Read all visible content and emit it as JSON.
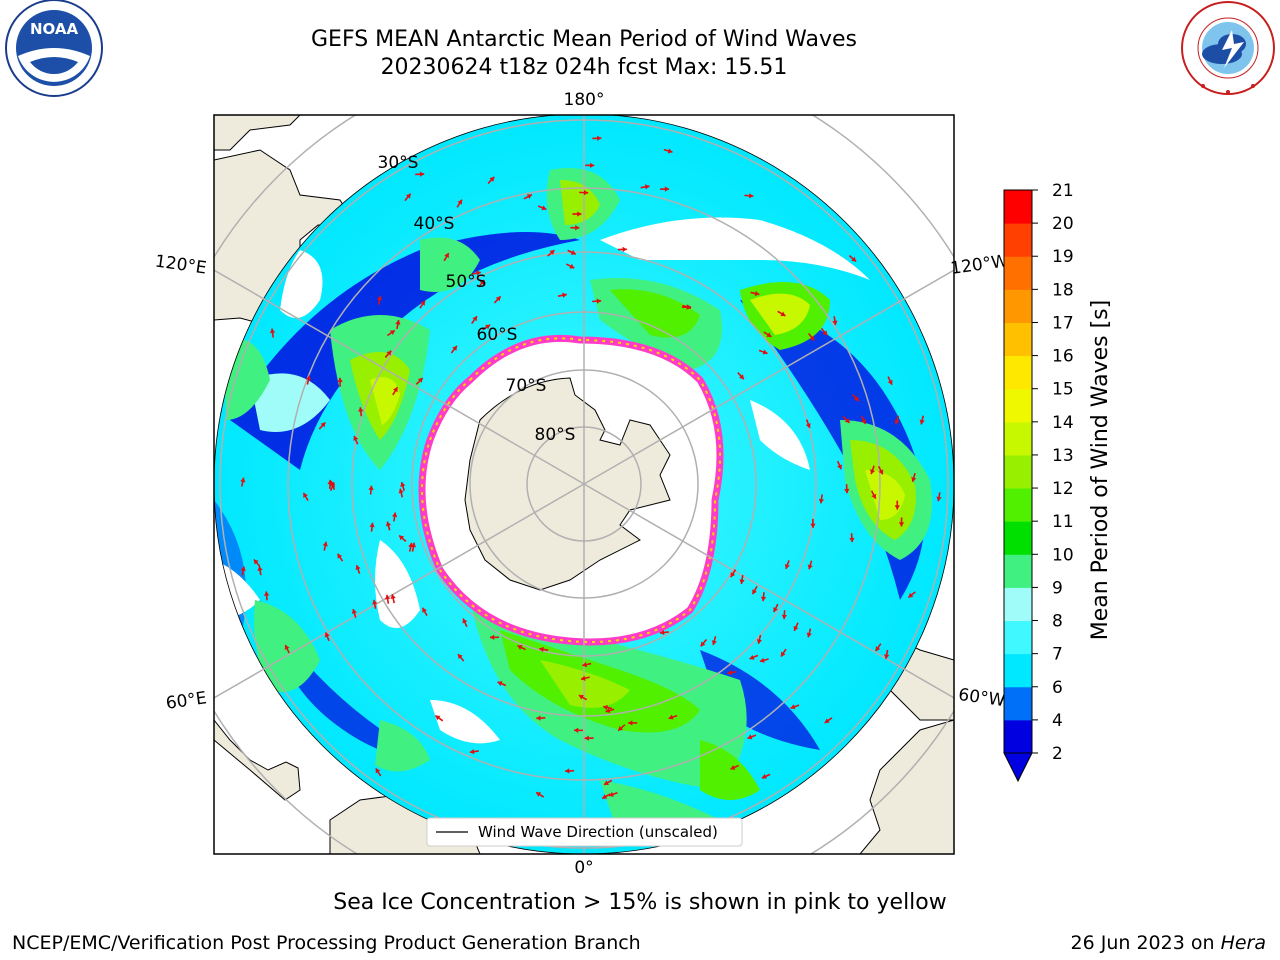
{
  "title": {
    "line1": "GEFS MEAN Antarctic Mean Period of Wind Waves",
    "line2": "20230624 t18z 024h fcst   Max: 15.51"
  },
  "map": {
    "projection": "south-polar-stereographic",
    "longitude_labels": [
      "180°",
      "120°E",
      "120°W",
      "60°E",
      "60°W",
      "0°"
    ],
    "latitude_labels": [
      "30°S",
      "40°S",
      "50°S",
      "60°S",
      "70°S",
      "80°S"
    ],
    "legend_label": "Wind Wave Direction (unscaled)",
    "arrow_color": "#e01010",
    "land_color": "#efebdc",
    "sea_ice_colors": [
      "#ff3cc8",
      "#ff9ad8",
      "#ffd700"
    ]
  },
  "colorbar": {
    "label": "Mean Period of Wind Waves [s]",
    "ticks": [
      "2",
      "4",
      "6",
      "7",
      "8",
      "9",
      "10",
      "11",
      "12",
      "13",
      "14",
      "15",
      "16",
      "17",
      "18",
      "19",
      "20",
      "21"
    ],
    "colors": [
      "#0000e0",
      "#0070f8",
      "#00e8ff",
      "#40f8ff",
      "#a0fcf8",
      "#40f080",
      "#00e000",
      "#50f000",
      "#98f000",
      "#c8f800",
      "#f0f800",
      "#ffe800",
      "#ffc000",
      "#ff9800",
      "#ff7000",
      "#ff4000",
      "#ff0000"
    ],
    "extend": "min"
  },
  "caption": "Sea Ice Concentration > 15% is shown in pink to yellow",
  "footer": {
    "credit": "NCEP/EMC/Verification Post Processing Product Generation Branch",
    "date": "26 Jun 2023 on",
    "machine": "Hera"
  },
  "logos": {
    "noaa_text": "NOAA",
    "noaa_ring_text": "NATIONAL OCEANIC AND ATMOSPHERIC ADMINISTRATION",
    "noaa_ring_text2": "U.S. DEPARTMENT OF COMMERCE",
    "nws_ring_text": "NATIONAL WEATHER SERVICE"
  }
}
